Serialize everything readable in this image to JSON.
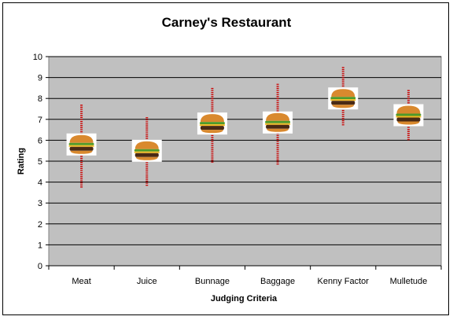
{
  "chart_data": {
    "type": "scatter",
    "title": "Carney's Restaurant",
    "xlabel": "Judging Criteria",
    "ylabel": "Rating",
    "ylim": [
      0,
      10
    ],
    "yticks": [
      0,
      1,
      2,
      3,
      4,
      5,
      6,
      7,
      8,
      9,
      10
    ],
    "categories": [
      "Meat",
      "Juice",
      "Bunnage",
      "Baggage",
      "Kenny Factor",
      "Mulletude"
    ],
    "values": [
      5.8,
      5.5,
      6.8,
      6.85,
      8.0,
      7.2
    ],
    "error_low": [
      3.7,
      3.8,
      4.9,
      4.8,
      6.7,
      6.0
    ],
    "error_high": [
      7.7,
      7.1,
      8.5,
      8.7,
      9.5,
      8.4
    ],
    "marker_icon": "hamburger-icon",
    "grid": true,
    "legend": "none",
    "colors": {
      "plot_area": "#c0c0c0",
      "gridline": "#000000",
      "error_bar": "#cc0000",
      "bun": "#d9892e",
      "patty": "#4a2a14",
      "lettuce": "#4f9a2a",
      "cheese": "#f2b820"
    }
  }
}
